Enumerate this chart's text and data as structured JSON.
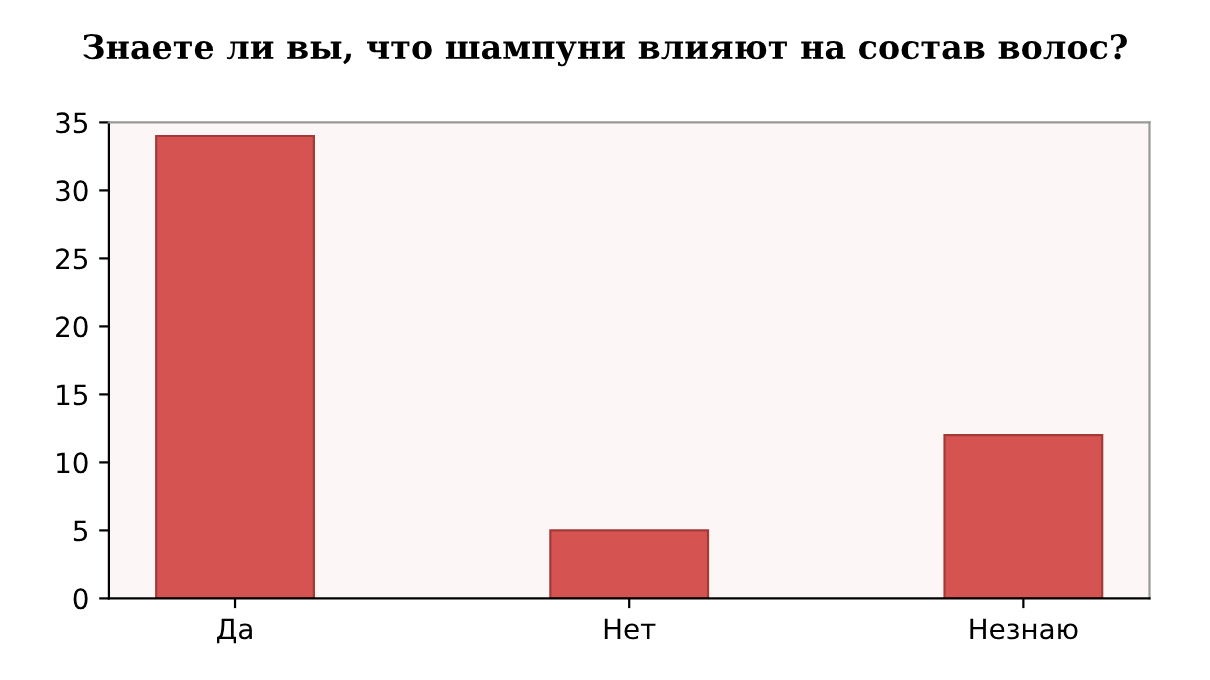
{
  "chart_data": {
    "type": "bar",
    "title": "Знаете ли вы, что шампуни влияют на состав волос?",
    "categories": [
      "Да",
      "Нет",
      "Незнаю"
    ],
    "values": [
      34,
      5,
      12
    ],
    "color": "#d55452",
    "ylim": [
      0,
      35
    ],
    "yticks": [
      0,
      5,
      10,
      15,
      20,
      25,
      30,
      35
    ],
    "grid": false
  }
}
